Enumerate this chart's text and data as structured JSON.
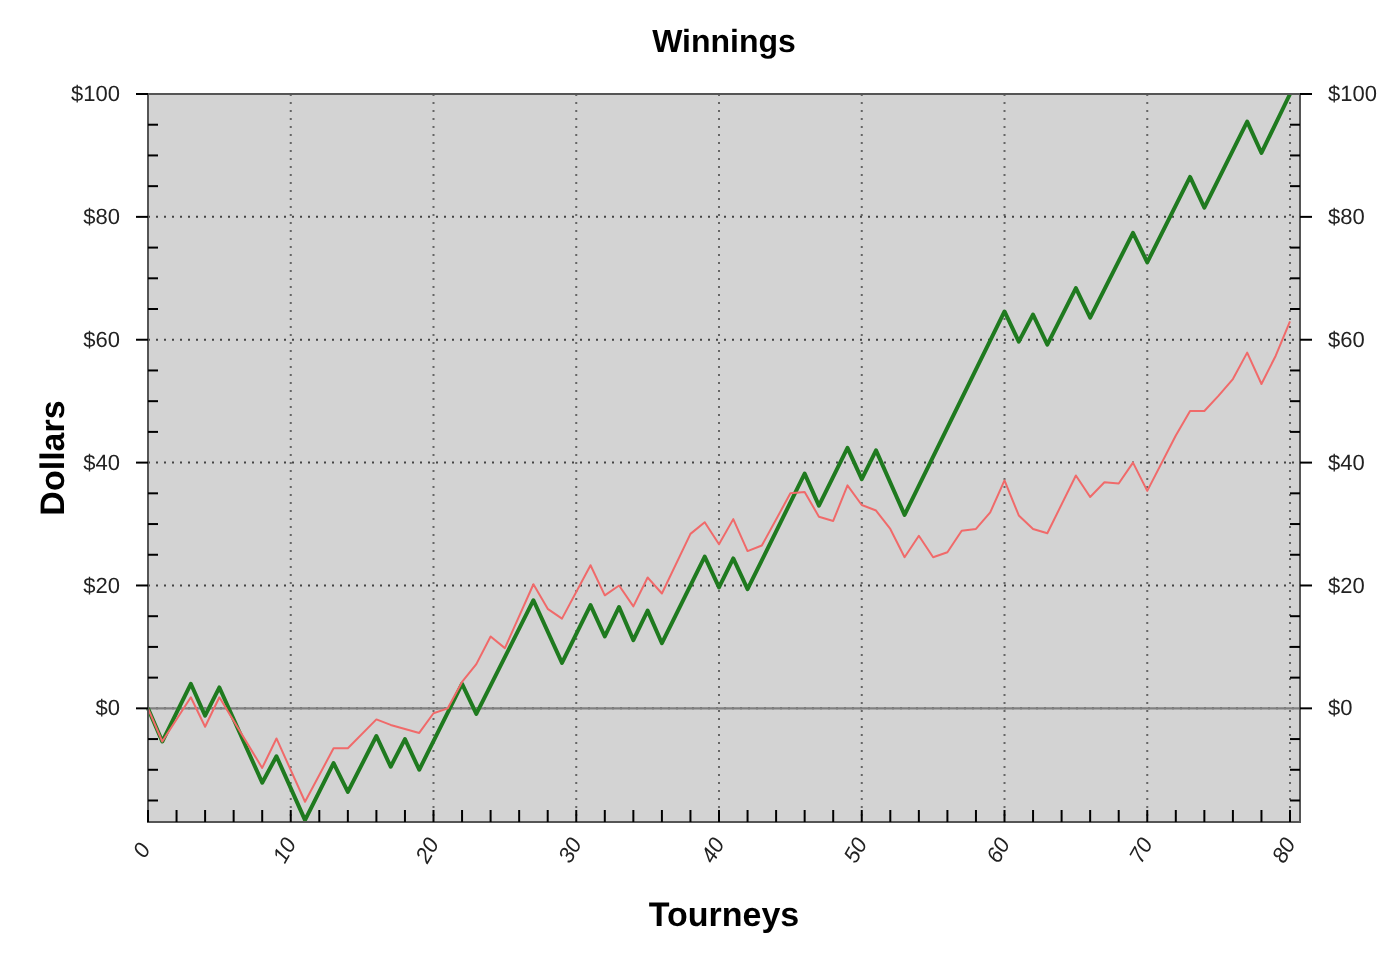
{
  "chart_data": {
    "type": "line",
    "title": "Winnings",
    "xlabel": "Tourneys",
    "ylabel": "Dollars",
    "xlim": [
      0,
      80.7
    ],
    "ylim": [
      -18.5,
      100
    ],
    "y2lim": [
      -18.5,
      100
    ],
    "xticks": [
      0,
      {
        "value": 2,
        "label": null
      },
      {
        "value": 4,
        "label": null
      },
      {
        "value": 6,
        "label": null
      },
      {
        "value": 8,
        "label": null
      },
      10,
      {
        "value": 12,
        "label": null
      },
      {
        "value": 14,
        "label": null
      },
      {
        "value": 16,
        "label": null
      },
      {
        "value": 18,
        "label": null
      },
      20,
      {
        "value": 22,
        "label": null
      },
      {
        "value": 24,
        "label": null
      },
      {
        "value": 26,
        "label": null
      },
      {
        "value": 28,
        "label": null
      },
      30,
      {
        "value": 32,
        "label": null
      },
      {
        "value": 34,
        "label": null
      },
      {
        "value": 36,
        "label": null
      },
      {
        "value": 38,
        "label": null
      },
      40,
      {
        "value": 42,
        "label": null
      },
      {
        "value": 44,
        "label": null
      },
      {
        "value": 46,
        "label": null
      },
      {
        "value": 48,
        "label": null
      },
      50,
      {
        "value": 52,
        "label": null
      },
      {
        "value": 54,
        "label": null
      },
      {
        "value": 56,
        "label": null
      },
      {
        "value": 58,
        "label": null
      },
      60,
      {
        "value": 62,
        "label": null
      },
      {
        "value": 64,
        "label": null
      },
      {
        "value": 66,
        "label": null
      },
      {
        "value": 68,
        "label": null
      },
      70,
      {
        "value": 72,
        "label": null
      },
      {
        "value": 74,
        "label": null
      },
      {
        "value": 76,
        "label": null
      },
      {
        "value": 78,
        "label": null
      },
      80
    ],
    "yticks": [
      {
        "value": -15,
        "label": null
      },
      {
        "value": -10,
        "label": null
      },
      {
        "value": -5,
        "label": null
      },
      {
        "value": 0,
        "label": "$0"
      },
      {
        "value": 5,
        "label": null
      },
      {
        "value": 10,
        "label": null
      },
      {
        "value": 15,
        "label": null
      },
      {
        "value": 20,
        "label": "$20"
      },
      {
        "value": 25,
        "label": null
      },
      {
        "value": 30,
        "label": null
      },
      {
        "value": 35,
        "label": null
      },
      {
        "value": 40,
        "label": "$40"
      },
      {
        "value": 45,
        "label": null
      },
      {
        "value": 50,
        "label": null
      },
      {
        "value": 55,
        "label": null
      },
      {
        "value": 60,
        "label": "$60"
      },
      {
        "value": 65,
        "label": null
      },
      {
        "value": 70,
        "label": null
      },
      {
        "value": 75,
        "label": null
      },
      {
        "value": 80,
        "label": "$80"
      },
      {
        "value": 85,
        "label": null
      },
      {
        "value": 90,
        "label": null
      },
      {
        "value": 95,
        "label": null
      },
      {
        "value": 100,
        "label": "$100"
      }
    ],
    "y2ticks": [
      {
        "value": -15,
        "label": null
      },
      {
        "value": -10,
        "label": null
      },
      {
        "value": -5,
        "label": null
      },
      {
        "value": 0,
        "label": "$0"
      },
      {
        "value": 5,
        "label": null
      },
      {
        "value": 10,
        "label": null
      },
      {
        "value": 15,
        "label": null
      },
      {
        "value": 20,
        "label": "$20"
      },
      {
        "value": 25,
        "label": null
      },
      {
        "value": 30,
        "label": null
      },
      {
        "value": 35,
        "label": null
      },
      {
        "value": 40,
        "label": "$40"
      },
      {
        "value": 45,
        "label": null
      },
      {
        "value": 50,
        "label": null
      },
      {
        "value": 55,
        "label": null
      },
      {
        "value": 60,
        "label": "$60"
      },
      {
        "value": 65,
        "label": null
      },
      {
        "value": 70,
        "label": null
      },
      {
        "value": 75,
        "label": null
      },
      {
        "value": 80,
        "label": "$80"
      },
      {
        "value": 85,
        "label": null
      },
      {
        "value": 90,
        "label": null
      },
      {
        "value": 95,
        "label": null
      },
      {
        "value": 100,
        "label": "$100"
      }
    ],
    "grid": true,
    "marker": "none",
    "line_style": "solid",
    "ref_lines": [
      {
        "axis": "y",
        "value": 0,
        "color": "#808080"
      }
    ],
    "series": [
      {
        "color": "#f06a6a",
        "x": [
          0,
          1,
          3,
          4,
          5,
          8,
          9,
          11,
          13,
          14,
          16,
          17,
          19,
          20,
          21,
          22,
          23,
          24,
          25,
          27,
          28,
          29,
          31,
          32,
          33,
          34,
          35,
          36,
          38,
          39,
          40,
          41,
          42,
          43,
          45,
          46,
          47,
          48,
          49,
          50,
          51,
          52,
          53,
          54,
          55,
          56,
          57,
          58,
          59,
          60,
          61,
          62,
          63,
          65,
          66,
          67,
          68,
          69,
          70,
          72,
          73,
          74,
          75,
          76,
          77,
          78,
          79,
          80
        ],
        "values": [
          0,
          -5.4,
          1.8,
          -3,
          1.8,
          -9.7,
          -4.9,
          -15.2,
          -6.5,
          -6.5,
          -1.8,
          -2.7,
          -4,
          -0.8,
          0,
          4.3,
          7.2,
          11.7,
          9.8,
          20.2,
          16.2,
          14.6,
          23.3,
          18.4,
          20,
          16.6,
          21.3,
          18.7,
          28.4,
          30.3,
          26.7,
          30.8,
          25.6,
          26.5,
          35,
          35.2,
          31.2,
          30.5,
          36.3,
          33.1,
          32.2,
          29.2,
          24.6,
          28.1,
          24.6,
          25.4,
          28.9,
          29.2,
          31.9,
          37.1,
          31.4,
          29.2,
          28.5,
          37.9,
          34.4,
          36.8,
          36.6,
          40,
          35.4,
          44.4,
          48.4,
          48.4,
          50.9,
          53.6,
          57.9,
          52.8,
          57.4,
          63
        ]
      },
      {
        "color": "#1f7a1f",
        "x": [
          0,
          1,
          3,
          4,
          5,
          8,
          9,
          11,
          13,
          14,
          16,
          17,
          18,
          19,
          22,
          23,
          27,
          29,
          31,
          32,
          33,
          34,
          35,
          36,
          39,
          40,
          41,
          42,
          46,
          47,
          49,
          50,
          51,
          53,
          60,
          61,
          62,
          63,
          65,
          66,
          69,
          70,
          73,
          74,
          77,
          78,
          80
        ],
        "values": [
          0,
          -5.4,
          4,
          -1.2,
          3.4,
          -12.1,
          -7.8,
          -18.2,
          -8.9,
          -13.6,
          -4.5,
          -9.5,
          -5,
          -10,
          4,
          -0.9,
          17.6,
          7.4,
          16.8,
          11.7,
          16.5,
          11.1,
          15.9,
          10.6,
          24.7,
          19.7,
          24.4,
          19.4,
          38.2,
          33,
          42.4,
          37.3,
          42,
          31.5,
          64.6,
          59.7,
          64.1,
          59.2,
          68.4,
          63.6,
          77.4,
          72.6,
          86.5,
          81.5,
          95.5,
          90.4,
          100
        ]
      }
    ]
  }
}
